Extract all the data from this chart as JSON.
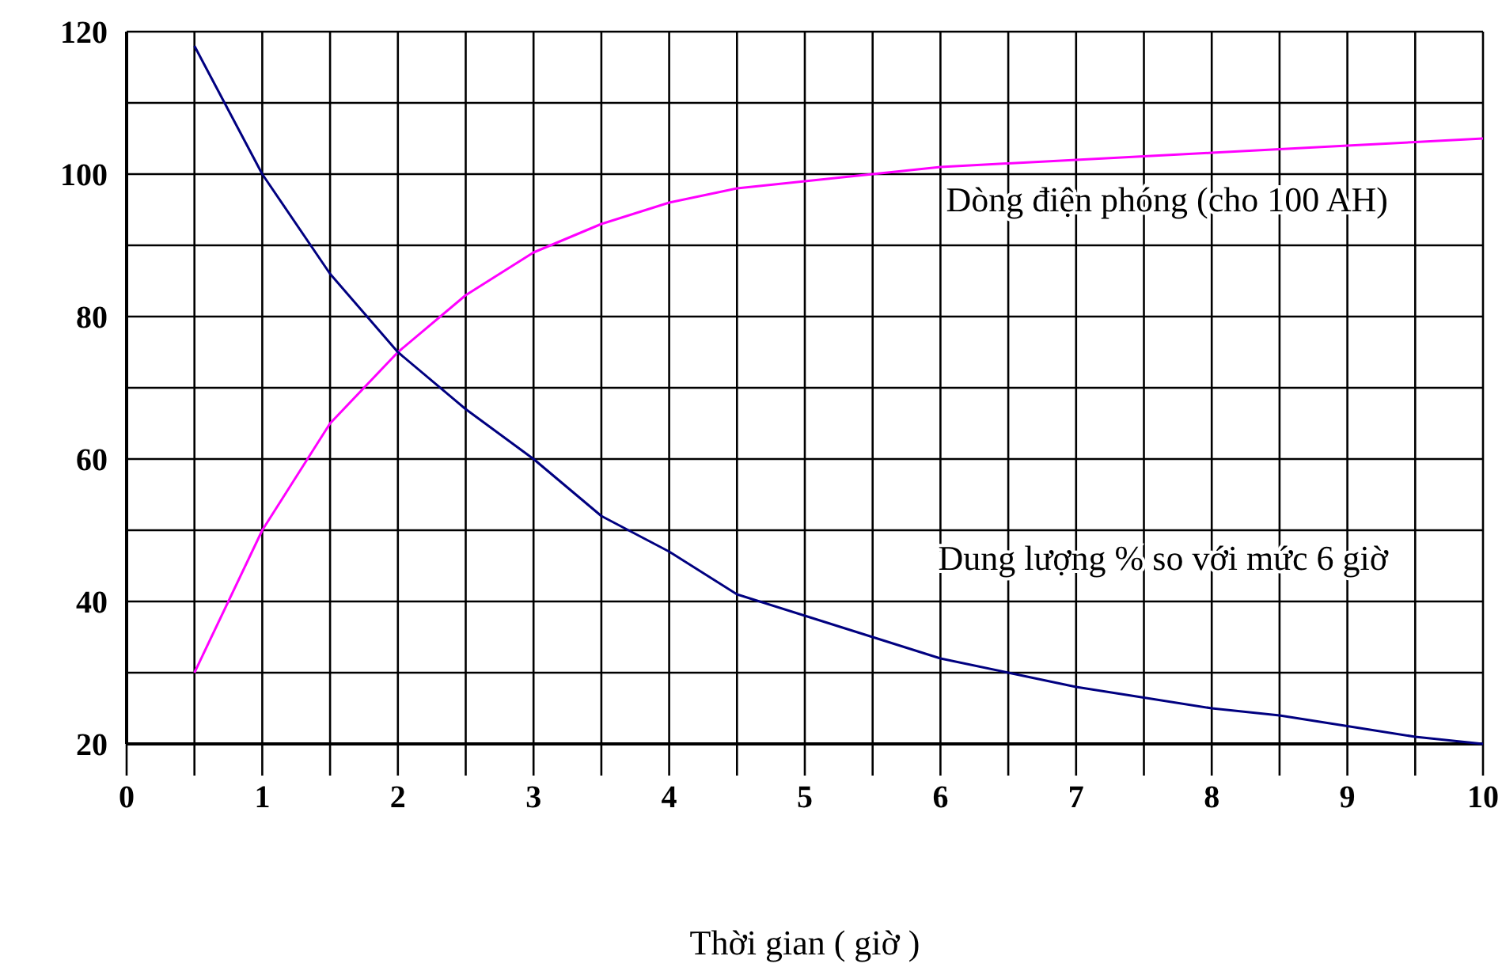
{
  "chart_data": {
    "type": "line",
    "xlabel": "Thời gian ( giờ )",
    "xlim": [
      0,
      10
    ],
    "ylim": [
      20,
      120
    ],
    "xticks": [
      0,
      {
        "value": 0.5,
        "label": null
      },
      1,
      {
        "value": 1.5,
        "label": null
      },
      2,
      {
        "value": 2.5,
        "label": null
      },
      3,
      {
        "value": 3.5,
        "label": null
      },
      4,
      {
        "value": 4.5,
        "label": null
      },
      5,
      {
        "value": 5.5,
        "label": null
      },
      6,
      {
        "value": 6.5,
        "label": null
      },
      7,
      {
        "value": 7.5,
        "label": null
      },
      8,
      {
        "value": 8.5,
        "label": null
      },
      9,
      {
        "value": 9.5,
        "label": null
      },
      10
    ],
    "yticks": [
      20,
      {
        "value": 30,
        "label": null
      },
      40,
      {
        "value": 50,
        "label": null
      },
      60,
      {
        "value": 70,
        "label": null
      },
      80,
      {
        "value": 90,
        "label": null
      },
      100,
      {
        "value": 110,
        "label": null
      },
      120
    ],
    "grid": true,
    "legend": false,
    "marker": "none",
    "line_style": "solid",
    "x": [
      0.5,
      1,
      1.5,
      2,
      2.5,
      3,
      3.5,
      4,
      4.5,
      5,
      5.5,
      6,
      6.5,
      7,
      7.5,
      8,
      8.5,
      9,
      9.5,
      10
    ],
    "series": [
      {
        "name": "Dòng điện phóng (cho 100 AH)",
        "color": "#ff00ff",
        "values": [
          30,
          50,
          65,
          75,
          83,
          89,
          93,
          96,
          98,
          99,
          100,
          101,
          101.5,
          102,
          102.5,
          103,
          103.5,
          104,
          104.5,
          105
        ]
      },
      {
        "name": "Dung lượng % so với mức 6 giờ",
        "color": "#000080",
        "values": [
          118,
          100,
          86,
          75,
          67,
          60,
          52,
          47,
          41,
          38,
          35,
          32,
          30,
          28,
          26.5,
          25,
          24,
          22.5,
          21,
          20
        ]
      }
    ]
  }
}
